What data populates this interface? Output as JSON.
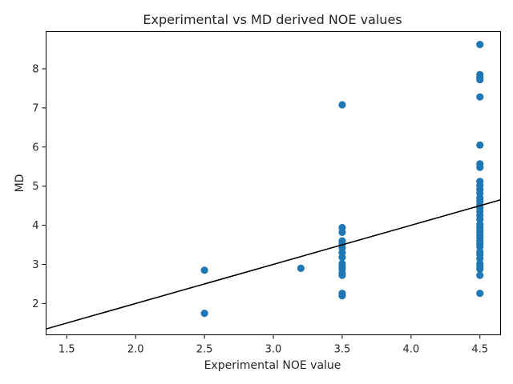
{
  "chart_data": {
    "type": "scatter",
    "title": "Experimental vs MD derived NOE values",
    "xlabel": "Experimental NOE value",
    "ylabel": "MD",
    "xlim": [
      1.35,
      4.65
    ],
    "ylim": [
      1.2,
      8.95
    ],
    "xticks": [
      1.5,
      2.0,
      2.5,
      3.0,
      3.5,
      4.0,
      4.5
    ],
    "xtick_labels": [
      "1.5",
      "2.0",
      "2.5",
      "3.0",
      "3.5",
      "4.0",
      "4.5"
    ],
    "yticks": [
      2,
      3,
      4,
      5,
      6,
      7,
      8
    ],
    "ytick_labels": [
      "2",
      "3",
      "4",
      "5",
      "6",
      "7",
      "8"
    ],
    "grid": false,
    "point_color": "#1f77b4",
    "line_color": "#000000",
    "reference_line": {
      "slope": 1,
      "intercept": 0
    },
    "points": [
      [
        2.5,
        2.85
      ],
      [
        2.5,
        1.75
      ],
      [
        3.2,
        2.9
      ],
      [
        3.5,
        7.08
      ],
      [
        3.5,
        3.94
      ],
      [
        3.5,
        3.82
      ],
      [
        3.5,
        3.6
      ],
      [
        3.5,
        3.52
      ],
      [
        3.5,
        3.42
      ],
      [
        3.5,
        3.3
      ],
      [
        3.5,
        3.18
      ],
      [
        3.5,
        3.02
      ],
      [
        3.5,
        2.95
      ],
      [
        3.5,
        2.88
      ],
      [
        3.5,
        2.78
      ],
      [
        3.5,
        2.72
      ],
      [
        3.5,
        2.26
      ],
      [
        3.5,
        2.2
      ],
      [
        4.5,
        8.62
      ],
      [
        4.5,
        7.85
      ],
      [
        4.5,
        7.78
      ],
      [
        4.5,
        7.72
      ],
      [
        4.5,
        7.28
      ],
      [
        4.5,
        6.05
      ],
      [
        4.5,
        5.57
      ],
      [
        4.5,
        5.48
      ],
      [
        4.5,
        5.12
      ],
      [
        4.5,
        5.02
      ],
      [
        4.5,
        4.92
      ],
      [
        4.5,
        4.82
      ],
      [
        4.5,
        4.7
      ],
      [
        4.5,
        4.62
      ],
      [
        4.5,
        4.52
      ],
      [
        4.5,
        4.45
      ],
      [
        4.5,
        4.35
      ],
      [
        4.5,
        4.25
      ],
      [
        4.5,
        4.15
      ],
      [
        4.5,
        4.02
      ],
      [
        4.5,
        3.95
      ],
      [
        4.5,
        3.88
      ],
      [
        4.5,
        3.82
      ],
      [
        4.5,
        3.75
      ],
      [
        4.5,
        3.68
      ],
      [
        4.5,
        3.6
      ],
      [
        4.5,
        3.52
      ],
      [
        4.5,
        3.45
      ],
      [
        4.5,
        3.32
      ],
      [
        4.5,
        3.25
      ],
      [
        4.5,
        3.15
      ],
      [
        4.5,
        3.02
      ],
      [
        4.5,
        2.95
      ],
      [
        4.5,
        2.88
      ],
      [
        4.5,
        2.72
      ],
      [
        4.5,
        2.26
      ]
    ]
  }
}
